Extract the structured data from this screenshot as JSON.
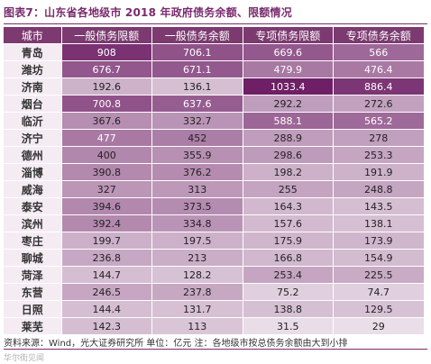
{
  "title": "图表7：山东省各地级市 2018 年政府债务余额、限额情况",
  "table": {
    "columns": [
      "城市",
      "一般债务限额",
      "一般债务余额",
      "专项债务限额",
      "专项债务余额"
    ],
    "rows": [
      [
        "青岛",
        "908",
        "706.1",
        "669.6",
        "566"
      ],
      [
        "潍坊",
        "676.7",
        "671.1",
        "479.9",
        "476.4"
      ],
      [
        "济南",
        "192.6",
        "136.1",
        "1033.4",
        "886.4"
      ],
      [
        "烟台",
        "700.8",
        "637.6",
        "292.2",
        "272.6"
      ],
      [
        "临沂",
        "367.6",
        "332.7",
        "588.1",
        "565.2"
      ],
      [
        "济宁",
        "477",
        "452",
        "288.9",
        "278"
      ],
      [
        "德州",
        "400",
        "355.9",
        "298.6",
        "253.3"
      ],
      [
        "淄博",
        "390.8",
        "376.2",
        "198.2",
        "191.9"
      ],
      [
        "威海",
        "327",
        "313",
        "255",
        "248.8"
      ],
      [
        "泰安",
        "394.6",
        "373.5",
        "164.3",
        "143.5"
      ],
      [
        "滨州",
        "392.4",
        "334.8",
        "157.6",
        "138.1"
      ],
      [
        "枣庄",
        "199.7",
        "197.5",
        "175.9",
        "173.9"
      ],
      [
        "聊城",
        "236.8",
        "213",
        "166.8",
        "154.9"
      ],
      [
        "菏泽",
        "144.7",
        "128.2",
        "253.4",
        "225.5"
      ],
      [
        "东营",
        "246.5",
        "237.8",
        "75.2",
        "74.7"
      ],
      [
        "日照",
        "144.4",
        "131.7",
        "138.8",
        "129.5"
      ],
      [
        "莱芜",
        "142.3",
        "113",
        "31.5",
        "29"
      ]
    ]
  },
  "source": "资料来源：Wind，光大证券研究所  单位：亿元  注：各地级市按总债务余额由大到小排",
  "watermark": "华尔街见闻",
  "colors": {
    "title": "#7a2b6e",
    "header_bg": "#7c3a70",
    "heat_low": "#f3ecf2",
    "heat_high": "#6e1f66"
  }
}
